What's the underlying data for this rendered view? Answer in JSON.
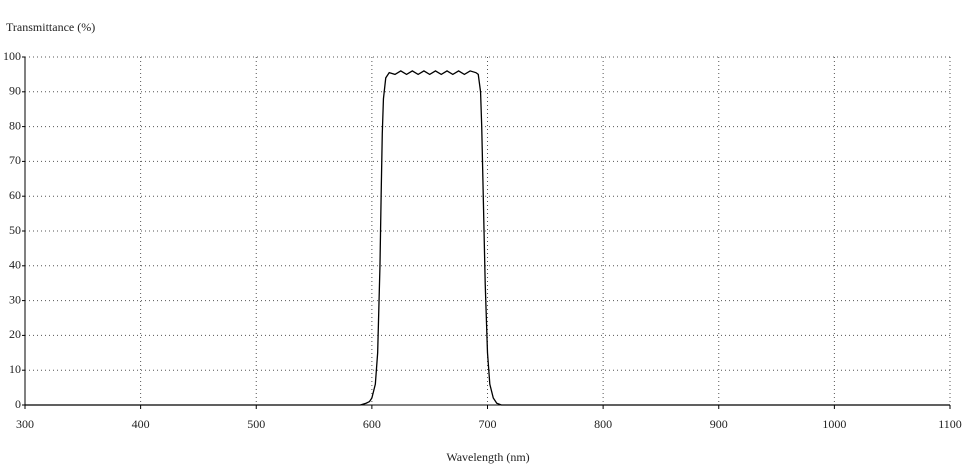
{
  "chart_data": {
    "type": "line",
    "title": "Transmittance (%)",
    "x_label": "Wavelength (nm)",
    "x": [
      300,
      590,
      595,
      598,
      600,
      603,
      605,
      607,
      608,
      609,
      610,
      612,
      615,
      620,
      625,
      630,
      635,
      640,
      645,
      650,
      655,
      660,
      665,
      670,
      675,
      680,
      685,
      690,
      692,
      694,
      695,
      696,
      697,
      698,
      700,
      702,
      705,
      708,
      712,
      1100
    ],
    "series": [
      {
        "color": "#000000",
        "values": [
          0,
          0,
          0.5,
          1,
          2,
          6,
          15,
          40,
          60,
          78,
          88,
          94,
          95.5,
          95,
          96,
          95,
          96,
          95,
          96,
          95,
          96,
          95,
          96,
          95,
          96,
          95,
          96,
          95.5,
          95,
          90,
          80,
          65,
          50,
          35,
          15,
          6,
          2,
          0.5,
          0,
          0
        ]
      }
    ],
    "xlim": [
      300,
      1100
    ],
    "xticks": [
      300,
      400,
      500,
      600,
      700,
      800,
      900,
      1000,
      1100
    ],
    "ylim": [
      0,
      100
    ],
    "yticks": [
      0,
      10,
      20,
      30,
      40,
      50,
      60,
      70,
      80,
      90,
      100
    ],
    "grid": true
  }
}
